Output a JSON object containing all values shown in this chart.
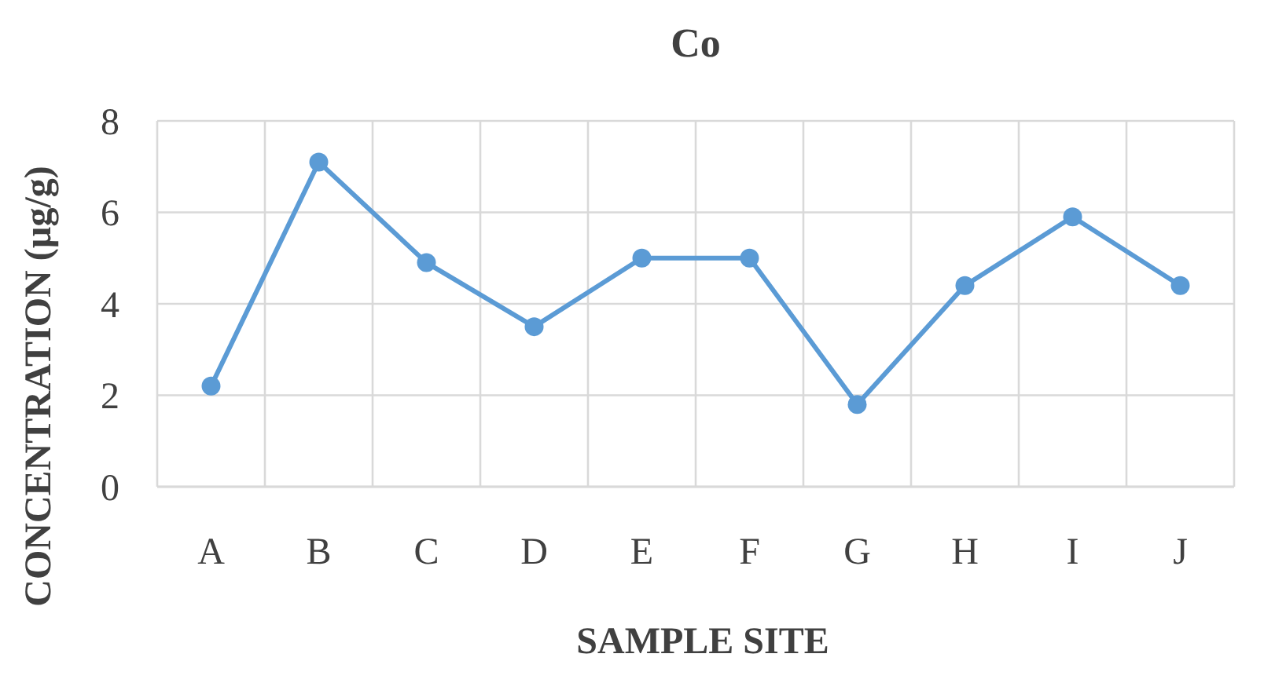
{
  "chart_data": {
    "type": "line",
    "title": "Co",
    "xlabel": "SAMPLE SITE",
    "ylabel": "CONCENTRATION (µg/g)",
    "categories": [
      "A",
      "B",
      "C",
      "D",
      "E",
      "F",
      "G",
      "H",
      "I",
      "J"
    ],
    "series": [
      {
        "color": "#5b9bd5",
        "values": [
          2.2,
          7.1,
          4.9,
          3.5,
          5.0,
          5.0,
          1.8,
          4.4,
          5.9,
          4.4
        ]
      }
    ],
    "ylim": [
      0,
      8
    ],
    "yticks": [
      0,
      2,
      4,
      6,
      8
    ],
    "grid": true,
    "marker": "circle",
    "line_style": "solid"
  }
}
